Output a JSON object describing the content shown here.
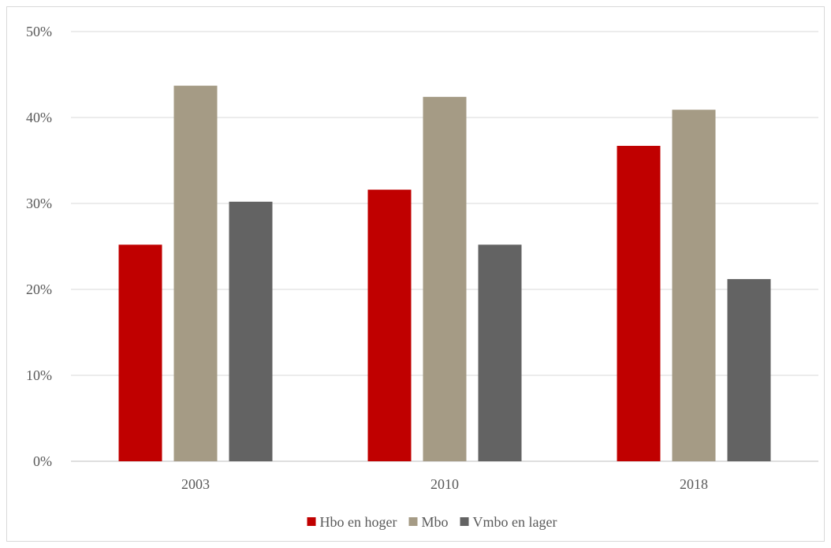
{
  "chart_data": {
    "type": "bar",
    "title": "",
    "xlabel": "",
    "ylabel": "",
    "categories": [
      "2003",
      "2010",
      "2018"
    ],
    "series": [
      {
        "name": "Hbo en hoger",
        "color": "#c00000",
        "values": [
          25.2,
          31.6,
          36.7
        ]
      },
      {
        "name": "Mbo",
        "color": "#a59b85",
        "values": [
          43.7,
          42.4,
          40.9
        ]
      },
      {
        "name": "Vmbo en lager",
        "color": "#636363",
        "values": [
          30.2,
          25.2,
          21.2
        ]
      }
    ],
    "ylim": [
      0,
      50
    ],
    "yticks": [
      0,
      10,
      20,
      30,
      40,
      50
    ],
    "ytick_labels": [
      "0%",
      "10%",
      "20%",
      "30%",
      "40%",
      "50%"
    ],
    "grid": true,
    "legend_position": "bottom"
  }
}
